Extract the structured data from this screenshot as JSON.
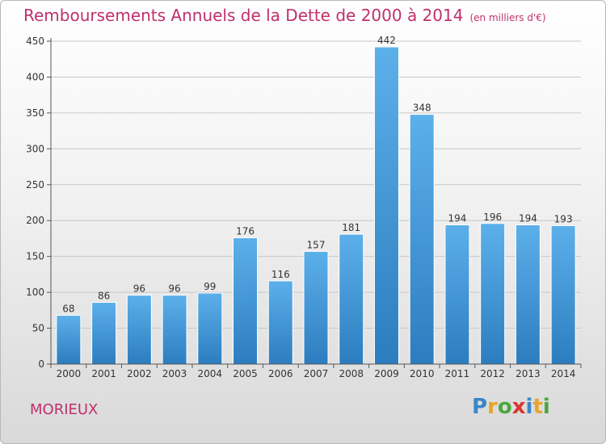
{
  "title": "Remboursements Annuels de la Dette de 2000 à 2014",
  "subtitle": "(en milliers d'€)",
  "commune": "MORIEUX",
  "brand": {
    "letters": [
      "P",
      "r",
      "o",
      "x",
      "i",
      "t",
      "i"
    ],
    "colors": [
      "#3a86c8",
      "#e8a42a",
      "#49a83b",
      "#d9362f",
      "#3a86c8",
      "#e8a42a",
      "#49a83b"
    ]
  },
  "colors": {
    "bar": "#4a9fde",
    "bar_dark": "#2f80c0",
    "title": "#c0306a"
  },
  "chart_data": {
    "type": "bar",
    "title": "Remboursements Annuels de la Dette de 2000 à 2014",
    "subtitle": "(en milliers d'€)",
    "xlabel": "",
    "ylabel": "",
    "ylim": [
      0,
      450
    ],
    "yticks": [
      0,
      50,
      100,
      150,
      200,
      250,
      300,
      350,
      400,
      450
    ],
    "grid": true,
    "categories": [
      "2000",
      "2001",
      "2002",
      "2003",
      "2004",
      "2005",
      "2006",
      "2007",
      "2008",
      "2009",
      "2010",
      "2011",
      "2012",
      "2013",
      "2014"
    ],
    "values": [
      68,
      86,
      96,
      96,
      99,
      176,
      116,
      157,
      181,
      442,
      348,
      194,
      196,
      194,
      193
    ]
  }
}
